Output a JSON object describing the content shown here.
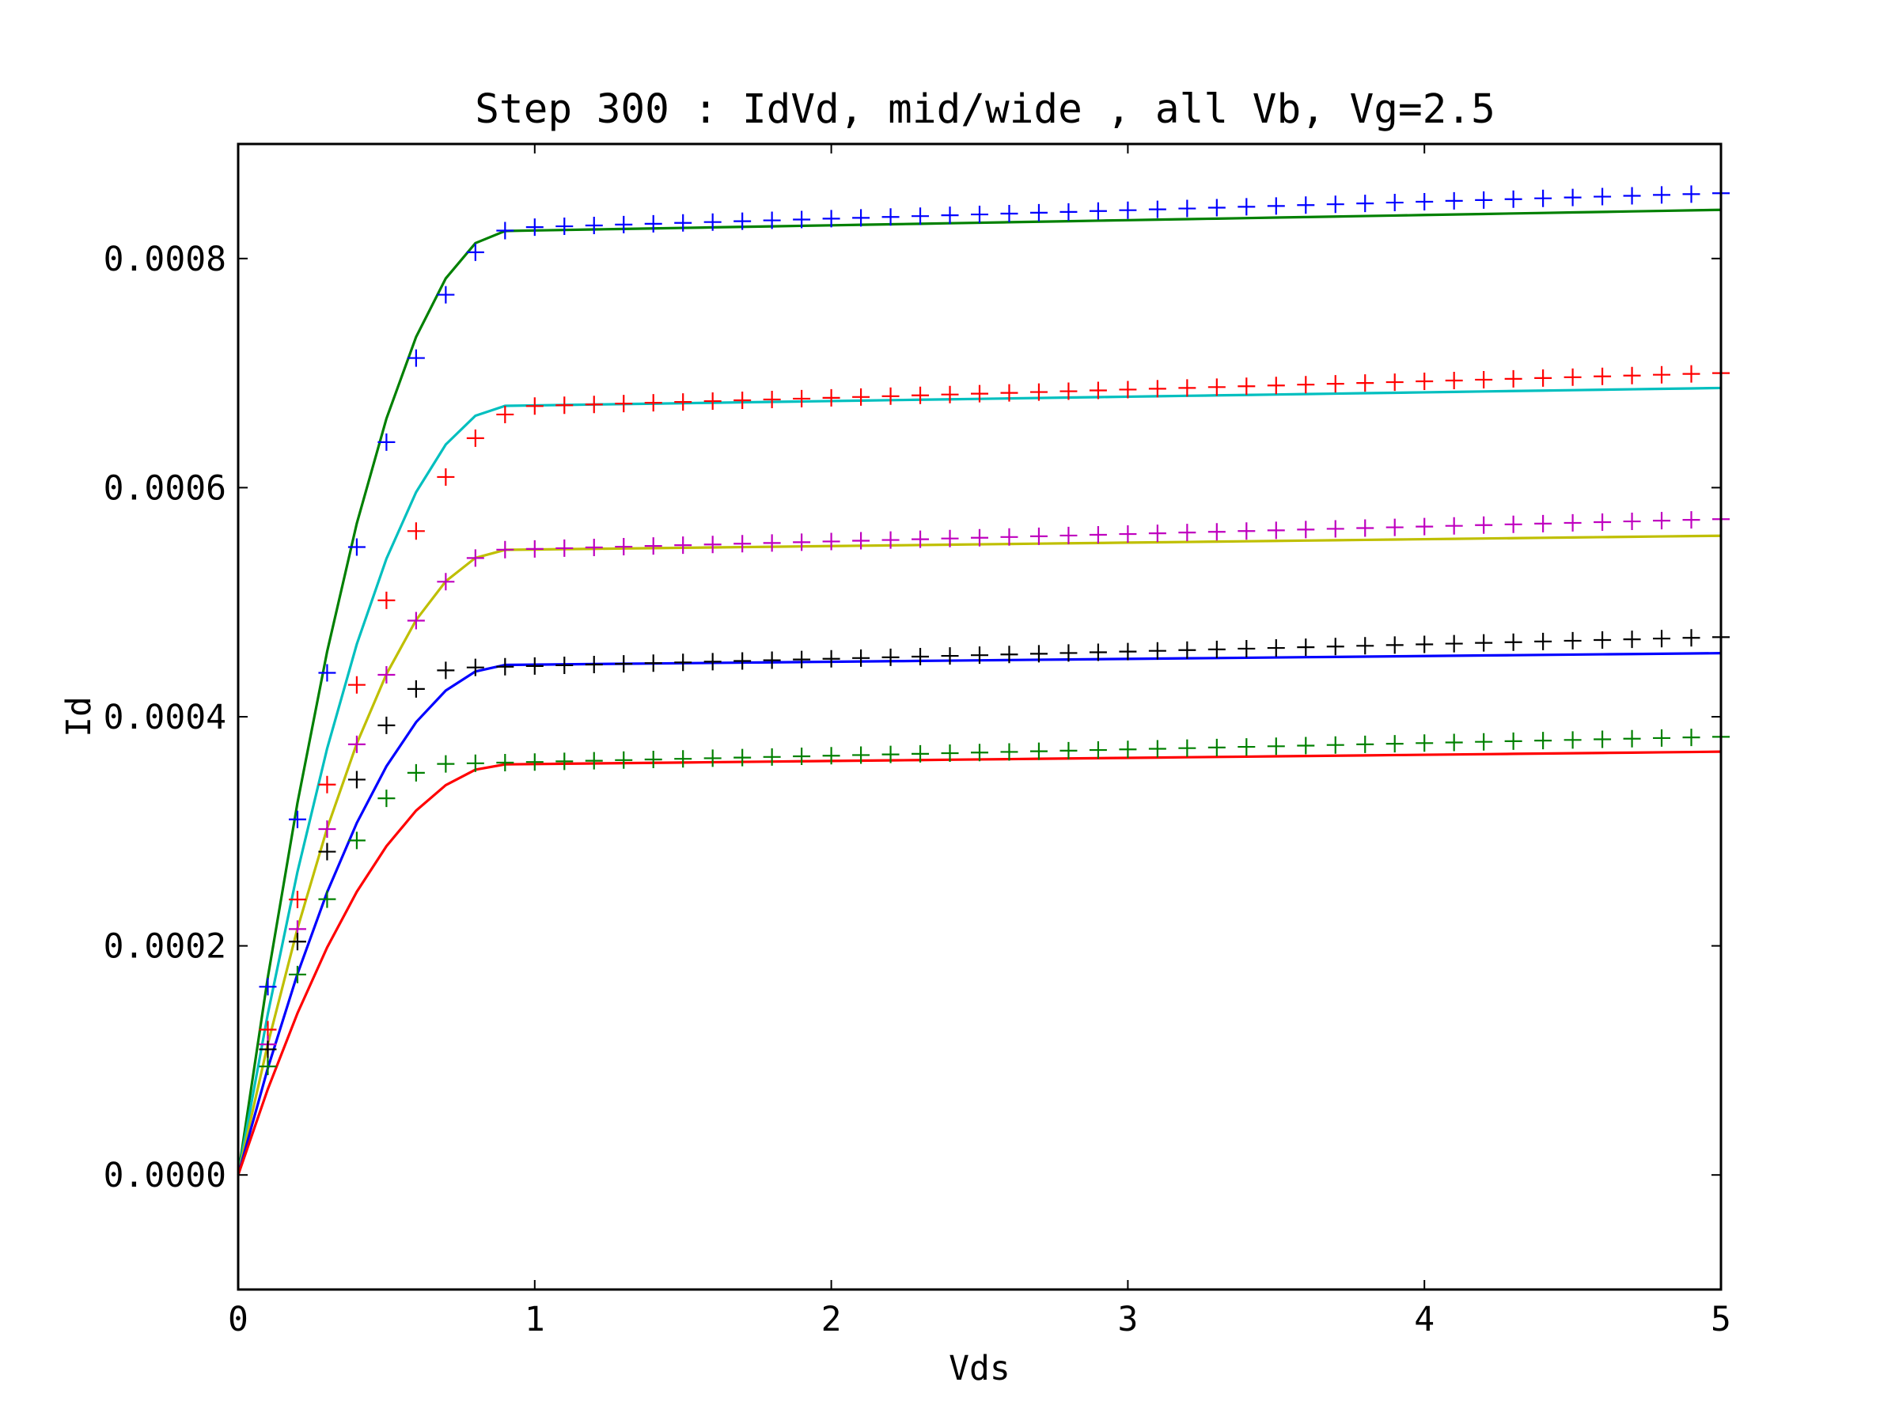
{
  "chart_data": {
    "type": "line",
    "title": "Step 300 : IdVd, mid/wide , all Vb, Vg=2.5",
    "xlabel": "Vds",
    "ylabel": "Id",
    "xlim": [
      0,
      5
    ],
    "ylim": [
      -0.0001,
      0.0009
    ],
    "xticks": [
      0,
      1,
      2,
      3,
      4,
      5
    ],
    "xtick_labels": [
      "0",
      "1",
      "2",
      "3",
      "4",
      "5"
    ],
    "yticks": [
      0,
      0.0002,
      0.0004,
      0.0006,
      0.0008
    ],
    "ytick_labels": [
      "0.0000",
      "0.0002",
      "0.0004",
      "0.0006",
      "0.0008"
    ],
    "grid": false,
    "legend": "none",
    "series": [
      {
        "style": "line",
        "color": "#008000",
        "vdsat": 0.9,
        "isat": 0.00082,
        "slope": 4.5e-06
      },
      {
        "style": "line",
        "color": "#00bfbf",
        "vdsat": 0.9,
        "isat": 0.000668,
        "slope": 3.8e-06
      },
      {
        "style": "line",
        "color": "#bfbf00",
        "vdsat": 0.9,
        "isat": 0.000543,
        "slope": 3e-06
      },
      {
        "style": "line",
        "color": "#0000ff",
        "vdsat": 0.9,
        "isat": 0.000443,
        "slope": 2.5e-06
      },
      {
        "style": "line",
        "color": "#ff0000",
        "vdsat": 0.9,
        "isat": 0.000356,
        "slope": 2.7e-06
      },
      {
        "style": "marker",
        "color": "#0000ff",
        "vdsat": 0.95,
        "isat": 0.00082,
        "slope": 7.4e-06
      },
      {
        "style": "marker",
        "color": "#ff0000",
        "vdsat": 1.0,
        "isat": 0.000664,
        "slope": 7.2e-06
      },
      {
        "style": "marker",
        "color": "#bf00bf",
        "vdsat": 0.9,
        "isat": 0.00054,
        "slope": 6.5e-06
      },
      {
        "style": "marker",
        "color": "#000000",
        "vdsat": 0.75,
        "isat": 0.000438,
        "slope": 6.3e-06
      },
      {
        "style": "marker",
        "color": "#008000",
        "vdsat": 0.7,
        "isat": 0.000355,
        "slope": 5.5e-06
      }
    ]
  }
}
